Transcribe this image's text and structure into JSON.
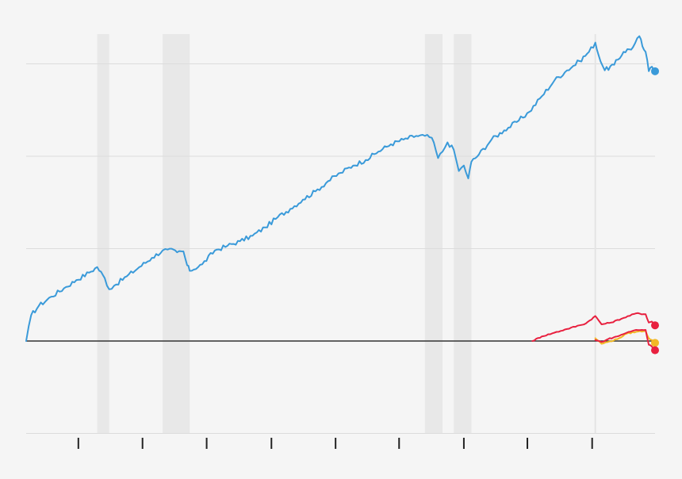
{
  "chart_data": {
    "type": "line",
    "title": "",
    "xlabel": "",
    "ylabel": "",
    "xlim": [
      0,
      100
    ],
    "ylim": [
      -1,
      3.3
    ],
    "grid": true,
    "baseline_y": 0,
    "y_gridlines": [
      -1,
      0,
      1,
      2,
      3
    ],
    "x_ticks": [
      8.3,
      18.5,
      28.7,
      39,
      49.2,
      59.3,
      69.6,
      79.7,
      90
    ],
    "shaded_periods": [
      [
        11.3,
        13.2
      ],
      [
        21.7,
        26
      ],
      [
        63.4,
        66.2
      ],
      [
        68,
        70.8
      ]
    ],
    "reference_line_x": 90.5,
    "series": [
      {
        "color": "#3a9ad9",
        "x": [
          0,
          0.8,
          2,
          4,
          6,
          8,
          10,
          11.3,
          12.5,
          13.2,
          14,
          16,
          18,
          20,
          21.7,
          22.5,
          24,
          25,
          25.6,
          26,
          28,
          30,
          32,
          34,
          36,
          38,
          40,
          42,
          44,
          46,
          48,
          50,
          52,
          54,
          56,
          58,
          60,
          62,
          63.4,
          64.5,
          65.5,
          66.2,
          67,
          68,
          68.8,
          69.6,
          70.3,
          70.8,
          72,
          74,
          76,
          78,
          80,
          82,
          84,
          86,
          88,
          89.5,
          90.5,
          91,
          92,
          93.5,
          95,
          96.5,
          97.5,
          98,
          98.5,
          99,
          99.5,
          100
        ],
        "values": [
          0,
          0.28,
          0.38,
          0.48,
          0.57,
          0.66,
          0.74,
          0.8,
          0.68,
          0.56,
          0.6,
          0.7,
          0.8,
          0.9,
          0.98,
          0.99,
          0.96,
          0.97,
          0.82,
          0.76,
          0.83,
          0.98,
          1.03,
          1.08,
          1.14,
          1.23,
          1.34,
          1.43,
          1.53,
          1.62,
          1.73,
          1.82,
          1.9,
          1.96,
          2.05,
          2.13,
          2.18,
          2.22,
          2.22,
          2.2,
          1.98,
          2.05,
          2.15,
          2.07,
          1.84,
          1.9,
          1.76,
          1.94,
          2.02,
          2.18,
          2.28,
          2.37,
          2.48,
          2.65,
          2.82,
          2.93,
          3.03,
          3.13,
          3.23,
          3.1,
          2.93,
          2.99,
          3.13,
          3.18,
          3.3,
          3.19,
          3.13,
          2.92,
          2.97,
          2.92
        ]
      },
      {
        "color": "#e8203f",
        "x": [
          80.5,
          82,
          84,
          86,
          88,
          89,
          90.5,
          91.5,
          93,
          95,
          97,
          98.5,
          99,
          99.5,
          100
        ],
        "values": [
          0,
          0.05,
          0.09,
          0.13,
          0.17,
          0.19,
          0.27,
          0.18,
          0.2,
          0.25,
          0.3,
          0.29,
          0.2,
          0.21,
          0.17
        ]
      },
      {
        "color": "#f2b824",
        "x": [
          90.5,
          91.5,
          92.5,
          94,
          95.5,
          97,
          98.5,
          99,
          99.5,
          100
        ],
        "values": [
          0.03,
          -0.03,
          -0.01,
          0.02,
          0.08,
          0.1,
          0.11,
          0.03,
          0.01,
          -0.02
        ]
      },
      {
        "color": "#e8203f",
        "x": [
          90.5,
          91.5,
          92.5,
          94,
          95.5,
          97,
          98.5,
          99,
          99.5,
          100
        ],
        "values": [
          0.01,
          -0.01,
          0.02,
          0.05,
          0.09,
          0.12,
          0.12,
          -0.04,
          -0.06,
          -0.1
        ]
      }
    ]
  }
}
